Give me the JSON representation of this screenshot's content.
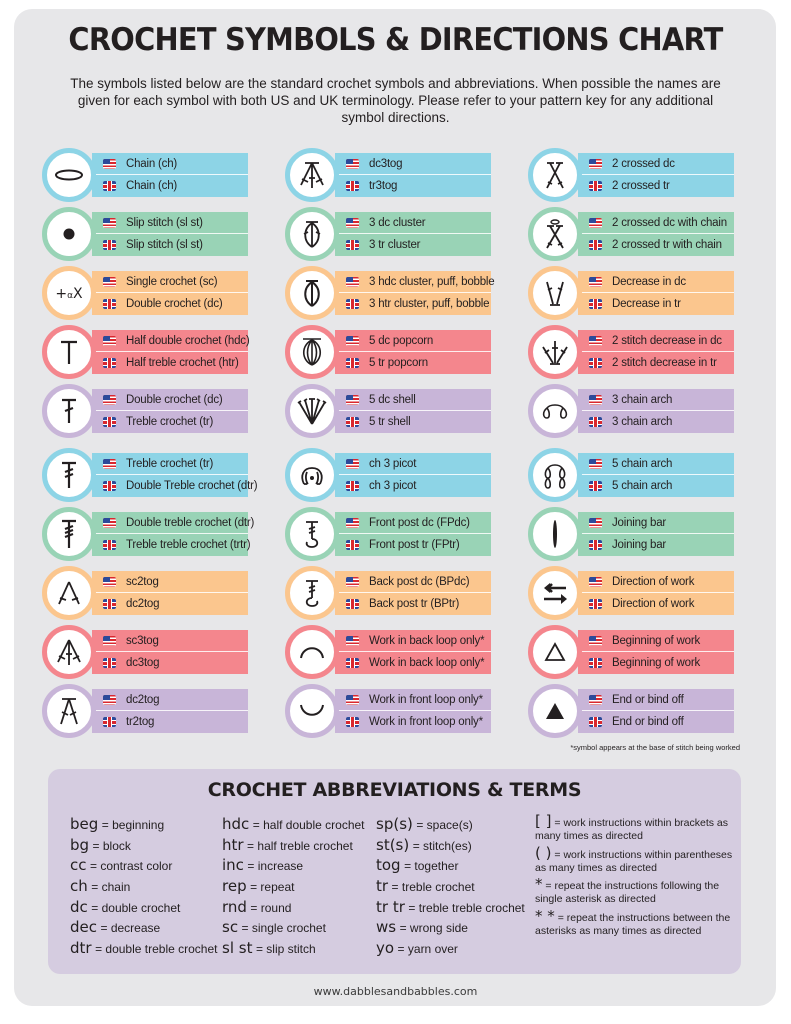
{
  "header": {
    "title": "CROCHET SYMBOLS & DIRECTIONS CHART",
    "intro": "The symbols listed below are the standard crochet symbols and abbreviations. When possible the names are given for each symbol with both US and UK terminology. Please refer to your pattern key for any additional symbol directions."
  },
  "colors": {
    "blue": "#8dd4e6",
    "green": "#99d3b6",
    "orange": "#fbc68e",
    "red": "#f4868d",
    "purple": "#c8b5d8",
    "panel": "#e7e7e9",
    "abbr_box": "#d5cce0"
  },
  "flags": {
    "us": "us-flag-icon",
    "uk": "uk-flag-icon"
  },
  "columns": [
    {
      "symbols": [
        {
          "icon": "chain-oval-icon",
          "color": "blue",
          "us": "Chain (ch)",
          "uk": "Chain (ch)"
        },
        {
          "icon": "slip-stitch-dot-icon",
          "color": "green",
          "us": "Slip stitch (sl st)",
          "uk": "Slip stitch (sl st)"
        },
        {
          "icon": "single-crochet-plus-or-x-icon",
          "color": "orange",
          "us": "Single crochet (sc)",
          "uk": "Double crochet (dc)",
          "glyph": "+αX"
        },
        {
          "icon": "half-double-crochet-t-icon",
          "color": "red",
          "us": "Half double crochet (hdc)",
          "uk": "Half treble crochet (htr)"
        },
        {
          "icon": "double-crochet-icon",
          "color": "purple",
          "us": "Double crochet (dc)",
          "uk": "Treble crochet (tr)"
        },
        {
          "icon": "treble-crochet-icon",
          "color": "blue",
          "us": "Treble crochet (tr)",
          "uk": "Double Treble crochet (dtr)"
        },
        {
          "icon": "double-treble-crochet-icon",
          "color": "green",
          "us": "Double treble crochet (dtr)",
          "uk": "Treble treble crochet (trtr)"
        },
        {
          "icon": "sc2tog-icon",
          "color": "orange",
          "us": "sc2tog",
          "uk": "dc2tog"
        },
        {
          "icon": "sc3tog-icon",
          "color": "red",
          "us": "sc3tog",
          "uk": "dc3tog"
        },
        {
          "icon": "dc2tog-icon",
          "color": "purple",
          "us": "dc2tog",
          "uk": "tr2tog"
        }
      ]
    },
    {
      "symbols": [
        {
          "icon": "dc3tog-icon",
          "color": "blue",
          "us": "dc3tog",
          "uk": "tr3tog"
        },
        {
          "icon": "cluster-icon",
          "color": "green",
          "us": "3 dc cluster",
          "uk": "3 tr cluster"
        },
        {
          "icon": "puff-bobble-icon",
          "color": "orange",
          "us": "3 hdc cluster, puff, bobble",
          "uk": "3 htr cluster, puff, bobble"
        },
        {
          "icon": "popcorn-icon",
          "color": "red",
          "us": "5 dc popcorn",
          "uk": "5 tr popcorn"
        },
        {
          "icon": "shell-icon",
          "color": "purple",
          "us": "5 dc shell",
          "uk": "5 tr shell"
        },
        {
          "icon": "picot-icon",
          "color": "blue",
          "us": "ch 3 picot",
          "uk": "ch 3 picot"
        },
        {
          "icon": "front-post-icon",
          "color": "green",
          "us": "Front post dc (FPdc)",
          "uk": "Front post tr (FPtr)"
        },
        {
          "icon": "back-post-icon",
          "color": "orange",
          "us": "Back post dc (BPdc)",
          "uk": "Back post tr (BPtr)"
        },
        {
          "icon": "back-loop-arc-icon",
          "color": "red",
          "us": "Work in back loop only*",
          "uk": "Work in back loop only*"
        },
        {
          "icon": "front-loop-arc-icon",
          "color": "purple",
          "us": "Work in front loop only*",
          "uk": "Work in front loop only*"
        }
      ]
    },
    {
      "symbols": [
        {
          "icon": "crossed-dc-icon",
          "color": "blue",
          "us": "2 crossed dc",
          "uk": "2 crossed tr"
        },
        {
          "icon": "crossed-dc-chain-icon",
          "color": "green",
          "us": "2 crossed dc with chain",
          "uk": "2 crossed tr with chain"
        },
        {
          "icon": "decrease-icon",
          "color": "orange",
          "us": "Decrease in dc",
          "uk": "Decrease in tr"
        },
        {
          "icon": "two-stitch-decrease-icon",
          "color": "red",
          "us": "2 stitch decrease in dc",
          "uk": "2 stitch decrease in tr"
        },
        {
          "icon": "three-chain-arch-icon",
          "color": "purple",
          "us": "3 chain arch",
          "uk": "3 chain arch"
        },
        {
          "icon": "five-chain-arch-icon",
          "color": "blue",
          "us": "5 chain arch",
          "uk": "5 chain arch"
        },
        {
          "icon": "joining-bar-icon",
          "color": "green",
          "us": "Joining bar",
          "uk": "Joining bar"
        },
        {
          "icon": "direction-arrows-icon",
          "color": "orange",
          "us": "Direction of work",
          "uk": "Direction of work"
        },
        {
          "icon": "triangle-outline-icon",
          "color": "red",
          "us": "Beginning of work",
          "uk": "Beginning of work"
        },
        {
          "icon": "triangle-filled-icon",
          "color": "purple",
          "us": "End or bind off",
          "uk": "End or bind off"
        }
      ]
    }
  ],
  "footnote": "*symbol appears at the base of stitch being worked",
  "abbreviations": {
    "title": "CROCHET ABBREVIATIONS & TERMS",
    "columns": [
      [
        {
          "k": "beg",
          "v": "= beginning"
        },
        {
          "k": "bg",
          "v": "= block"
        },
        {
          "k": "cc",
          "v": "= contrast color"
        },
        {
          "k": "ch",
          "v": "= chain"
        },
        {
          "k": "dc",
          "v": "= double crochet"
        },
        {
          "k": "dec",
          "v": "= decrease"
        },
        {
          "k": "dtr",
          "v": "= double treble crochet"
        }
      ],
      [
        {
          "k": "hdc",
          "v": "= half double crochet"
        },
        {
          "k": "htr",
          "v": "= half treble crochet"
        },
        {
          "k": "inc",
          "v": "= increase"
        },
        {
          "k": "rep",
          "v": "= repeat"
        },
        {
          "k": "rnd",
          "v": "= round"
        },
        {
          "k": "sc",
          "v": "= single crochet"
        },
        {
          "k": "sl st",
          "v": "= slip stitch"
        }
      ],
      [
        {
          "k": "sp(s)",
          "v": "= space(s)"
        },
        {
          "k": "st(s)",
          "v": "= stitch(es)"
        },
        {
          "k": "tog",
          "v": "= together"
        },
        {
          "k": "tr",
          "v": "= treble crochet"
        },
        {
          "k": "tr tr",
          "v": "= treble treble crochet"
        },
        {
          "k": "ws",
          "v": "= wrong side"
        },
        {
          "k": "yo",
          "v": "= yarn over"
        }
      ]
    ],
    "notes": [
      {
        "sym": "[ ]",
        "text": "= work instructions within brackets as many times as directed"
      },
      {
        "sym": "( )",
        "text": "= work instructions within parentheses as many times as directed"
      },
      {
        "sym": "*",
        "text": "= repeat the instructions following the single asterisk as directed"
      },
      {
        "sym": "* *",
        "text": "= repeat the instructions between the asterisks as many times as directed"
      }
    ]
  },
  "footer": {
    "url": "www.dabblesandbabbles.com"
  }
}
